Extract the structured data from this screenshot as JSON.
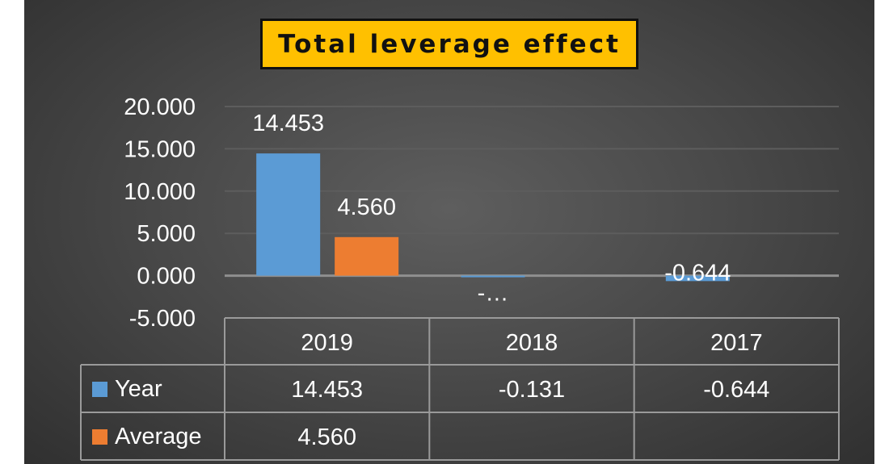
{
  "chart_data": {
    "type": "bar",
    "title": "Total leverage effect",
    "categories": [
      "2019",
      "2018",
      "2017"
    ],
    "series": [
      {
        "name": "Year",
        "values": [
          14.453,
          -0.131,
          -0.644
        ],
        "color": "#5b9bd5",
        "labels": [
          "14.453",
          "-…",
          "-0.644"
        ],
        "table": [
          "14.453",
          "-0.131",
          "-0.644"
        ]
      },
      {
        "name": "Average",
        "values": [
          4.56,
          null,
          null
        ],
        "color": "#ed7d31",
        "labels": [
          "4.560",
          "",
          ""
        ],
        "table": [
          "4.560",
          "",
          ""
        ]
      }
    ],
    "yticks": [
      "20.000",
      "15.000",
      "10.000",
      "5.000",
      "0.000",
      "-5.000"
    ],
    "ylim": [
      -5,
      20
    ],
    "grid": true,
    "data_table": true
  }
}
